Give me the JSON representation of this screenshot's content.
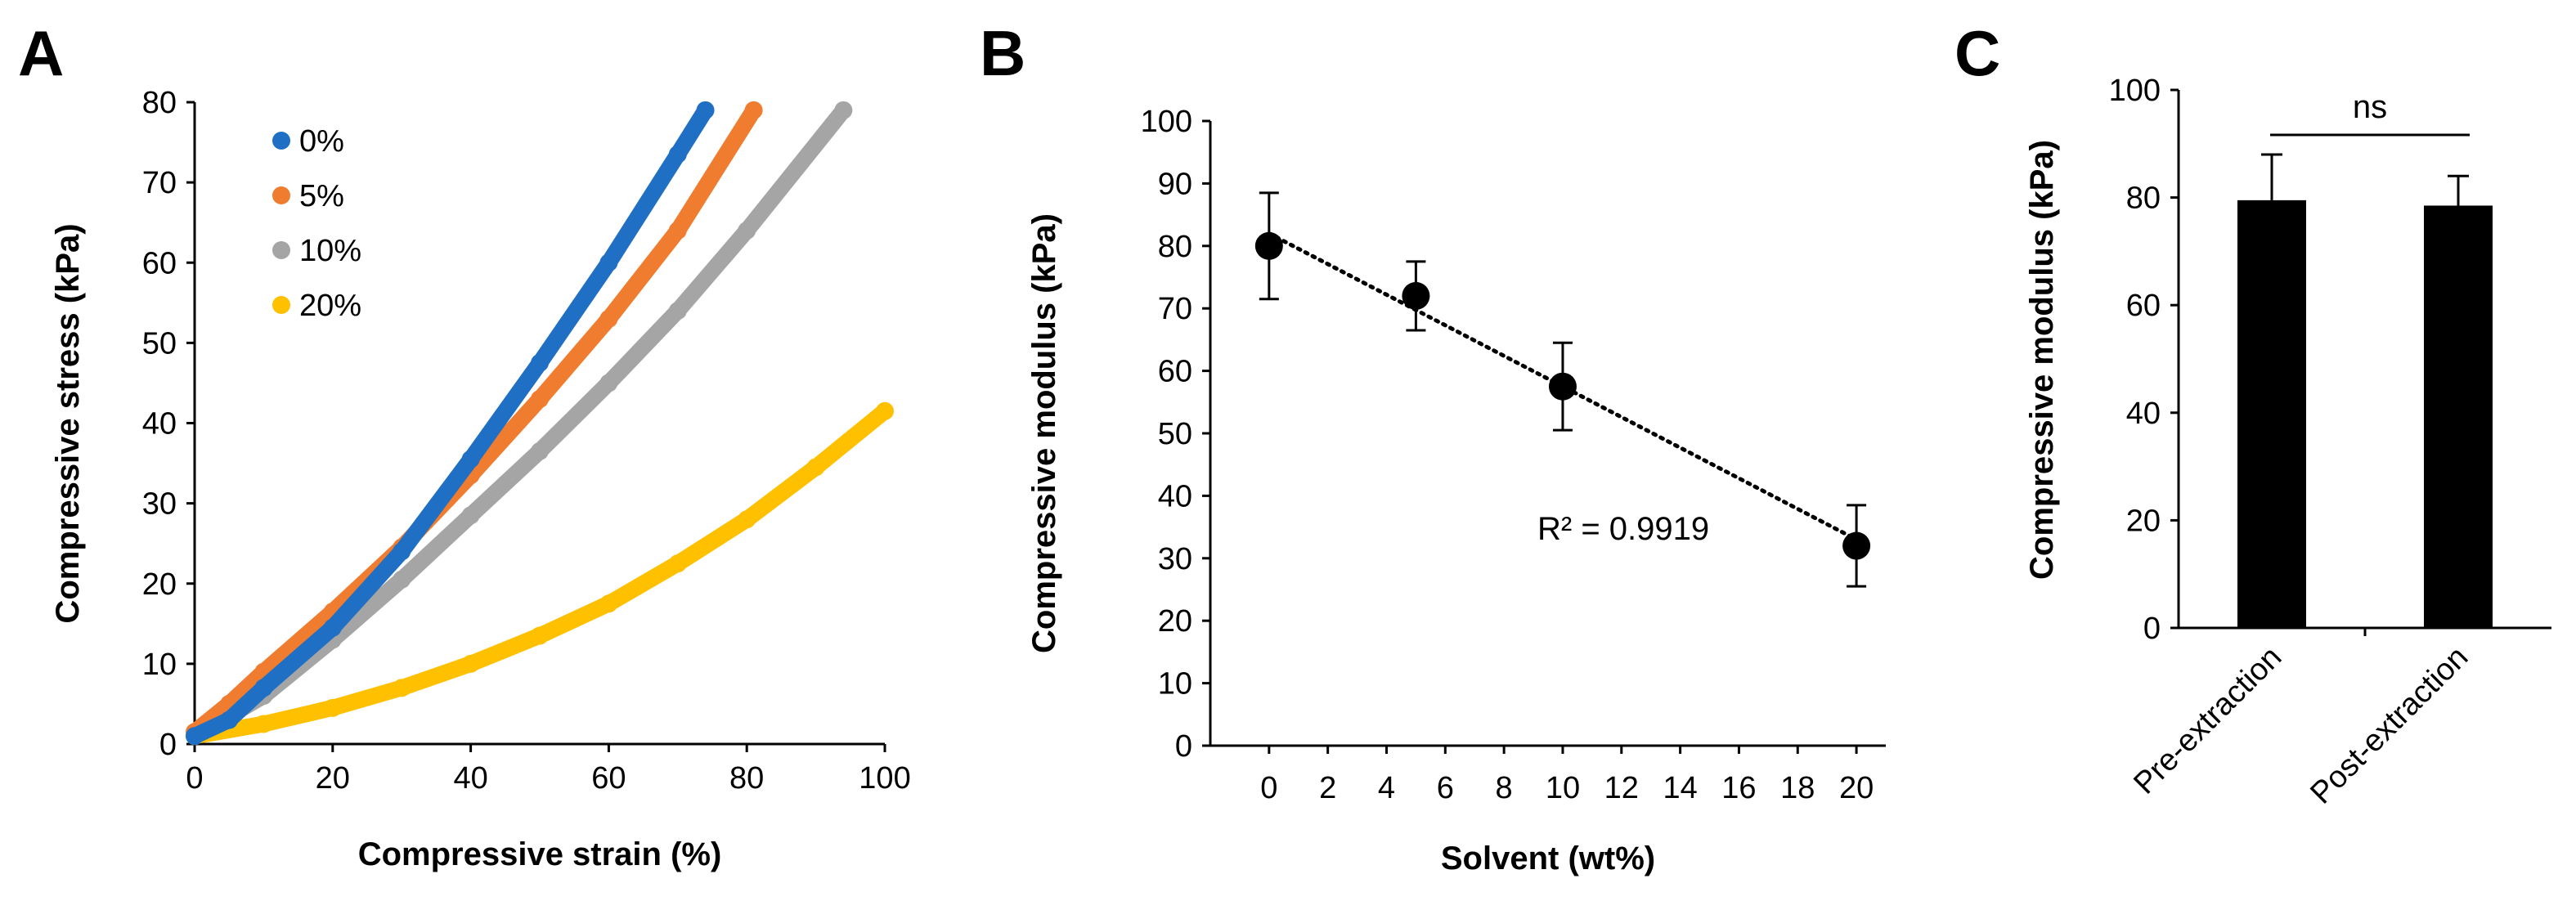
{
  "chart_data": [
    {
      "panel": "A",
      "type": "scatter",
      "xlabel": "Compressive strain (%)",
      "ylabel": "Compressive stress (kPa)",
      "xlim": [
        0,
        100
      ],
      "ylim": [
        0,
        80
      ],
      "xticks": [
        "0",
        "20",
        "40",
        "60",
        "80",
        "100"
      ],
      "yticks": [
        "0",
        "10",
        "20",
        "30",
        "40",
        "50",
        "60",
        "70",
        "80"
      ],
      "legend_position": "top-left",
      "series": [
        {
          "name": "0%",
          "color": "#1F6FC5",
          "x": [
            0,
            5,
            10,
            20,
            30,
            40,
            50,
            60,
            70,
            74
          ],
          "y": [
            1,
            3,
            7,
            14.5,
            24,
            35.5,
            47.5,
            60,
            73.5,
            79
          ]
        },
        {
          "name": "5%",
          "color": "#F07C2F",
          "x": [
            0,
            5,
            10,
            20,
            30,
            40,
            50,
            60,
            70,
            81
          ],
          "y": [
            1.5,
            5,
            9,
            16.5,
            24.5,
            33.5,
            43,
            53,
            64,
            79
          ]
        },
        {
          "name": "10%",
          "color": "#A5A5A5",
          "x": [
            0,
            10,
            20,
            30,
            40,
            50,
            60,
            70,
            80,
            94
          ],
          "y": [
            1,
            6,
            13,
            20.5,
            28.5,
            36.5,
            45,
            54,
            64,
            79
          ]
        },
        {
          "name": "20%",
          "color": "#FFC000",
          "x": [
            0,
            10,
            20,
            30,
            40,
            50,
            60,
            70,
            80,
            90,
            100
          ],
          "y": [
            1,
            2.5,
            4.5,
            7,
            10,
            13.5,
            17.5,
            22.5,
            28,
            34.5,
            41.5
          ]
        }
      ]
    },
    {
      "panel": "B",
      "type": "scatter",
      "xlabel": "Solvent (wt%)",
      "ylabel": "Compressive modulus (kPa)",
      "xlim": [
        -2,
        21
      ],
      "ylim": [
        0,
        100
      ],
      "xticks": [
        "0",
        "2",
        "4",
        "6",
        "8",
        "10",
        "12",
        "14",
        "16",
        "18",
        "20"
      ],
      "yticks": [
        "0",
        "10",
        "20",
        "30",
        "40",
        "50",
        "60",
        "70",
        "80",
        "90",
        "100"
      ],
      "x": [
        0,
        5,
        10,
        20
      ],
      "y": [
        80,
        72,
        57.5,
        32
      ],
      "error": [
        8.5,
        5.5,
        7,
        6.5
      ],
      "trendline": {
        "style": "dotted",
        "x": [
          0,
          20
        ],
        "y": [
          82,
          33
        ]
      },
      "annotation": "R² = 0.9919"
    },
    {
      "panel": "C",
      "type": "bar",
      "ylabel": "Compressive modulus (kPa)",
      "categories": [
        "Pre-extraction",
        "Post-extraction"
      ],
      "values": [
        79.5,
        78.5
      ],
      "error": [
        8.5,
        5.5
      ],
      "ylim": [
        0,
        100
      ],
      "yticks": [
        "0",
        "20",
        "40",
        "60",
        "80",
        "100"
      ],
      "bar_color": "#000000",
      "significance": "ns"
    }
  ]
}
